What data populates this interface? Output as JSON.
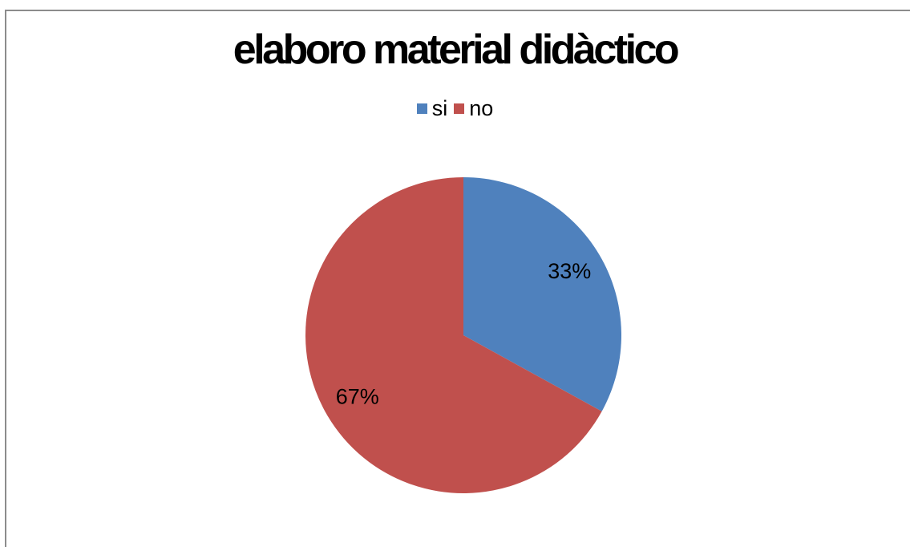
{
  "chart_data": {
    "type": "pie",
    "title": "elaboro material didàctico",
    "legend_position": "top",
    "slices": [
      {
        "name": "si",
        "value": 33,
        "label": "33%",
        "color": "#4f81bd"
      },
      {
        "name": "no",
        "value": 67,
        "label": "67%",
        "color": "#c0504d"
      }
    ]
  }
}
